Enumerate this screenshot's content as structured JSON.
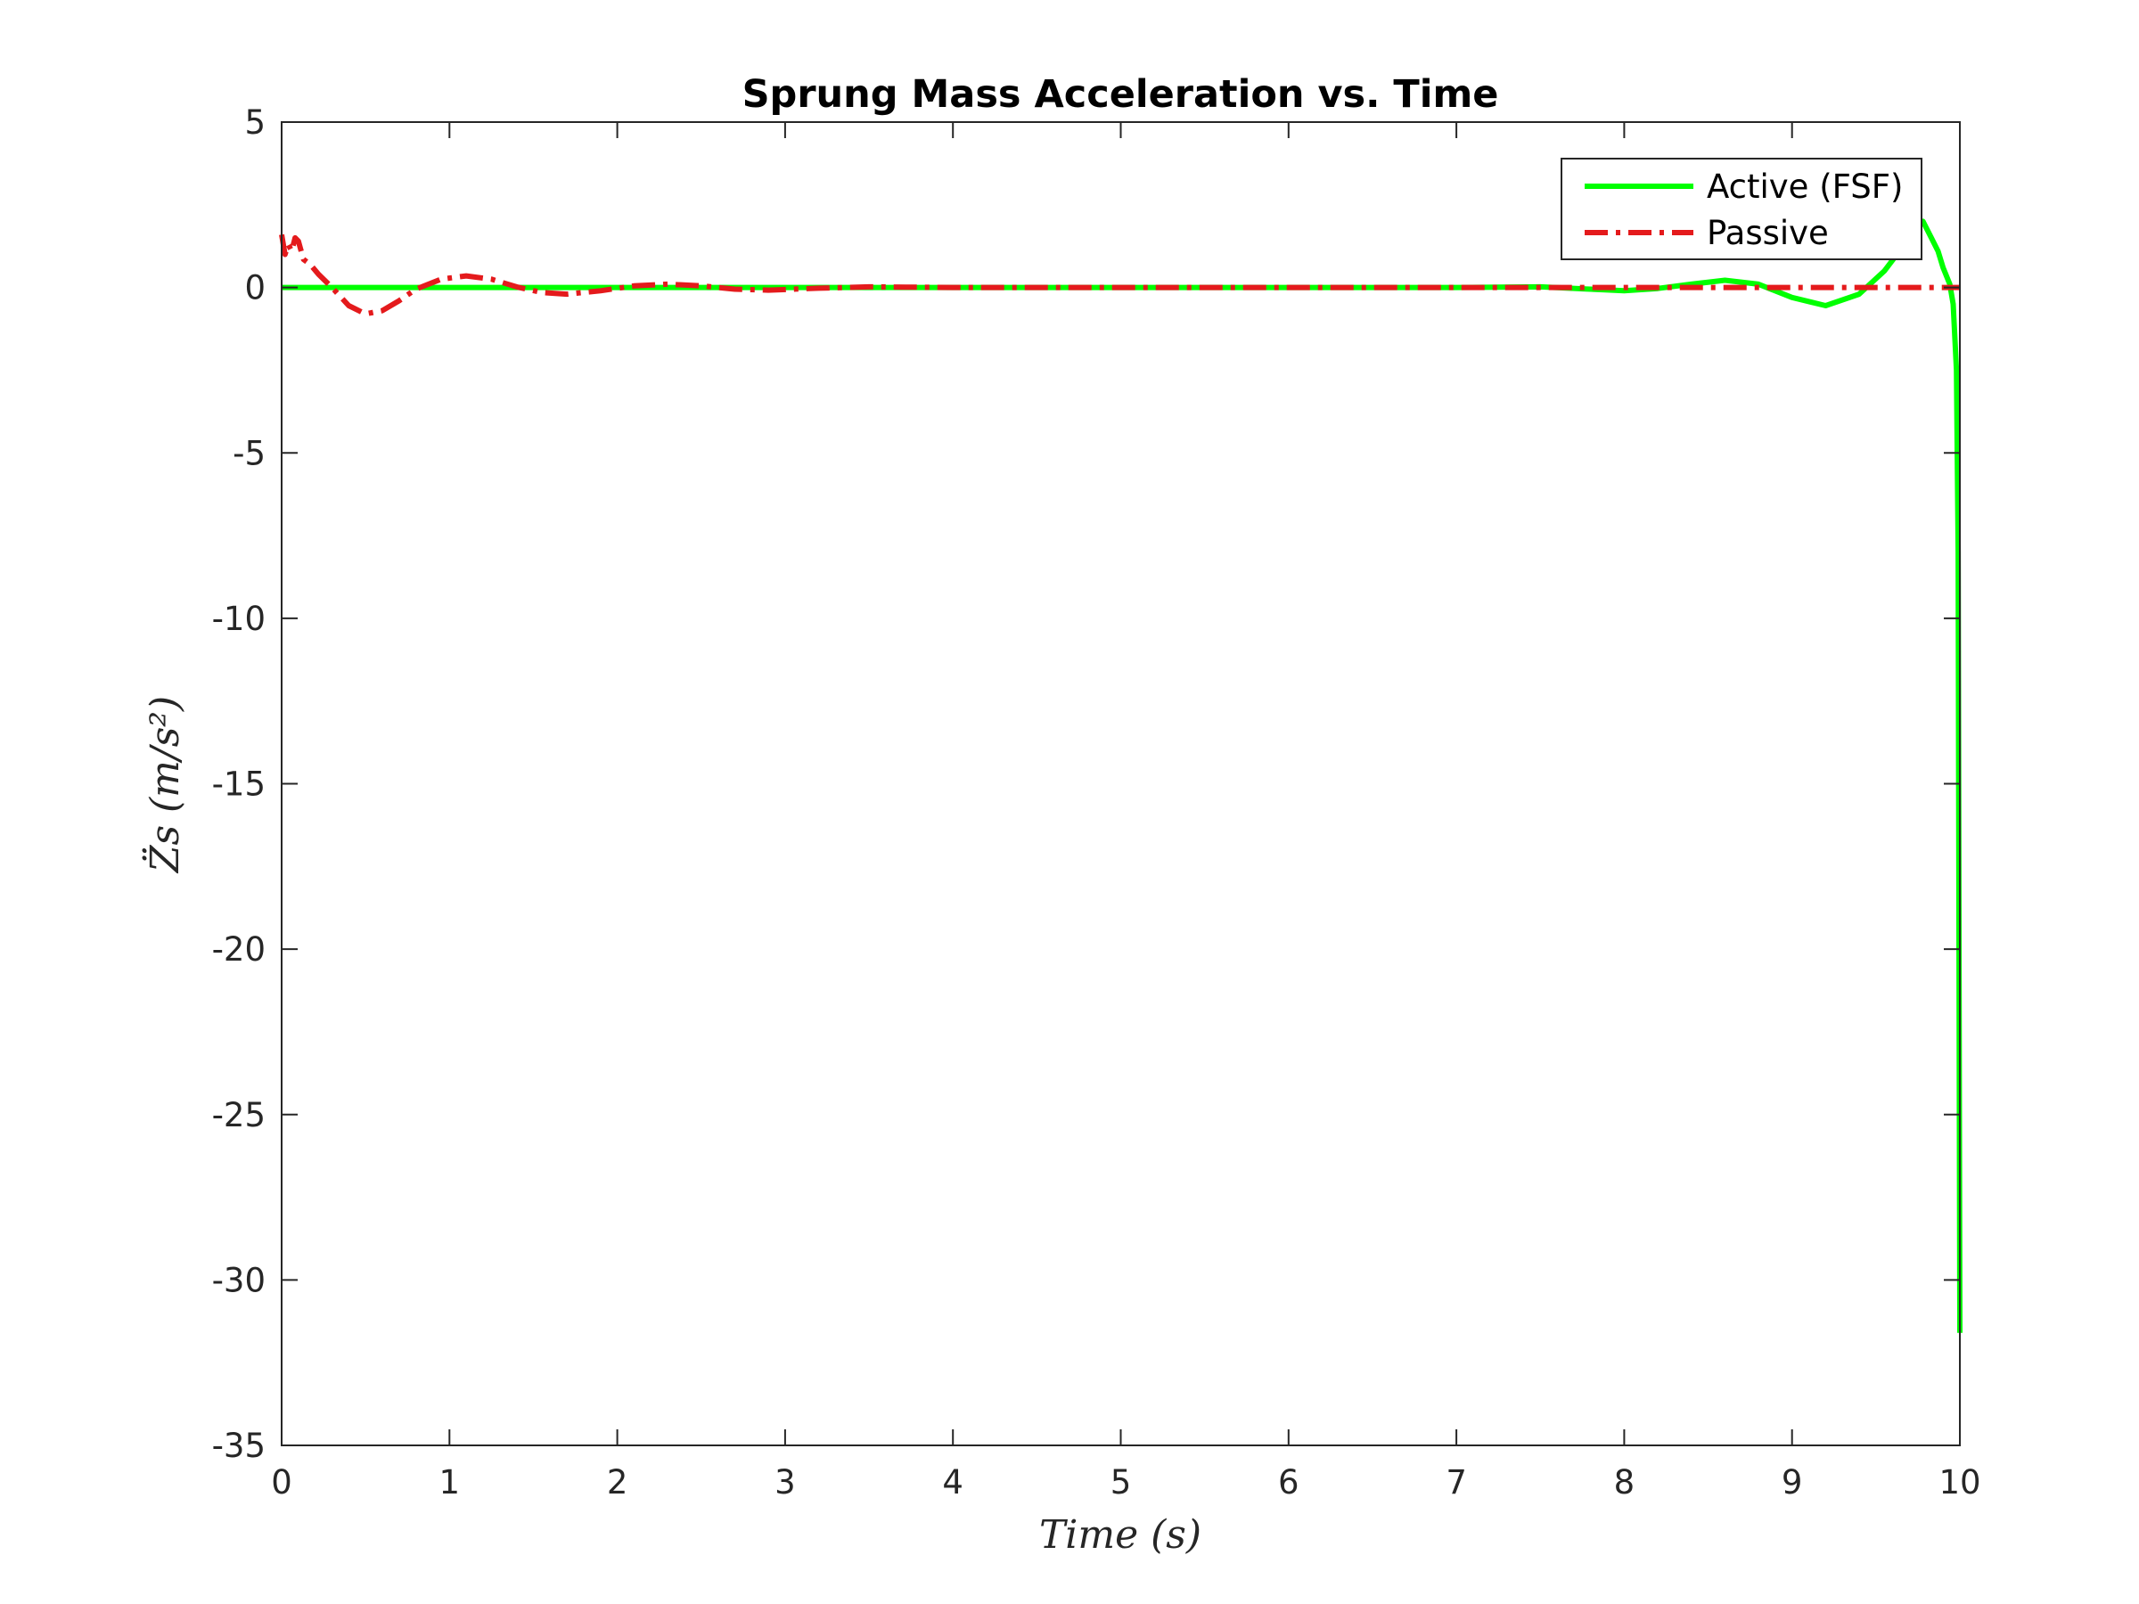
{
  "chart_data": {
    "type": "line",
    "title": "Sprung Mass Acceleration vs. Time",
    "xlabel": "Time (s)",
    "ylabel": "Z̈s (m/s²)",
    "xlim": [
      0,
      10
    ],
    "ylim": [
      -35,
      5
    ],
    "xticks": [
      0,
      1,
      2,
      3,
      4,
      5,
      6,
      7,
      8,
      9,
      10
    ],
    "yticks": [
      5,
      0,
      -5,
      -10,
      -15,
      -20,
      -25,
      -30,
      -35
    ],
    "grid": false,
    "legend_position": "top-right",
    "series": [
      {
        "name": "Active (FSF)",
        "color": "#00ff00",
        "style": "solid",
        "x": [
          0,
          0.5,
          1,
          2,
          3,
          4,
          5,
          6,
          7,
          7.5,
          7.8,
          8.0,
          8.2,
          8.4,
          8.6,
          8.8,
          9.0,
          9.2,
          9.4,
          9.55,
          9.7,
          9.78,
          9.83,
          9.87,
          9.9,
          9.94,
          9.96,
          9.98,
          9.99,
          10.0
        ],
        "y": [
          0,
          0,
          0,
          0,
          0,
          0,
          0,
          0,
          0,
          0.02,
          -0.05,
          -0.1,
          -0.03,
          0.1,
          0.22,
          0.1,
          -0.3,
          -0.55,
          -0.2,
          0.5,
          1.5,
          2.0,
          1.5,
          1.1,
          0.6,
          0.1,
          -0.5,
          -2.5,
          -8.0,
          -31.6
        ]
      },
      {
        "name": "Passive",
        "color": "#e41a1c",
        "style": "dashdot",
        "x": [
          0,
          0.02,
          0.04,
          0.06,
          0.08,
          0.1,
          0.13,
          0.17,
          0.22,
          0.3,
          0.4,
          0.5,
          0.6,
          0.7,
          0.8,
          0.95,
          1.1,
          1.25,
          1.4,
          1.55,
          1.7,
          1.9,
          2.1,
          2.3,
          2.5,
          2.7,
          2.9,
          3.2,
          3.5,
          4,
          5,
          6,
          7,
          8,
          9,
          9.9,
          10.0
        ],
        "y": [
          1.6,
          1.0,
          1.3,
          1.1,
          1.5,
          1.4,
          0.85,
          0.7,
          0.4,
          0.0,
          -0.55,
          -0.8,
          -0.7,
          -0.4,
          -0.05,
          0.25,
          0.35,
          0.25,
          0.02,
          -0.15,
          -0.2,
          -0.1,
          0.05,
          0.1,
          0.05,
          -0.05,
          -0.08,
          -0.02,
          0.02,
          0,
          0,
          0,
          0,
          0,
          0,
          0,
          0
        ]
      }
    ]
  }
}
